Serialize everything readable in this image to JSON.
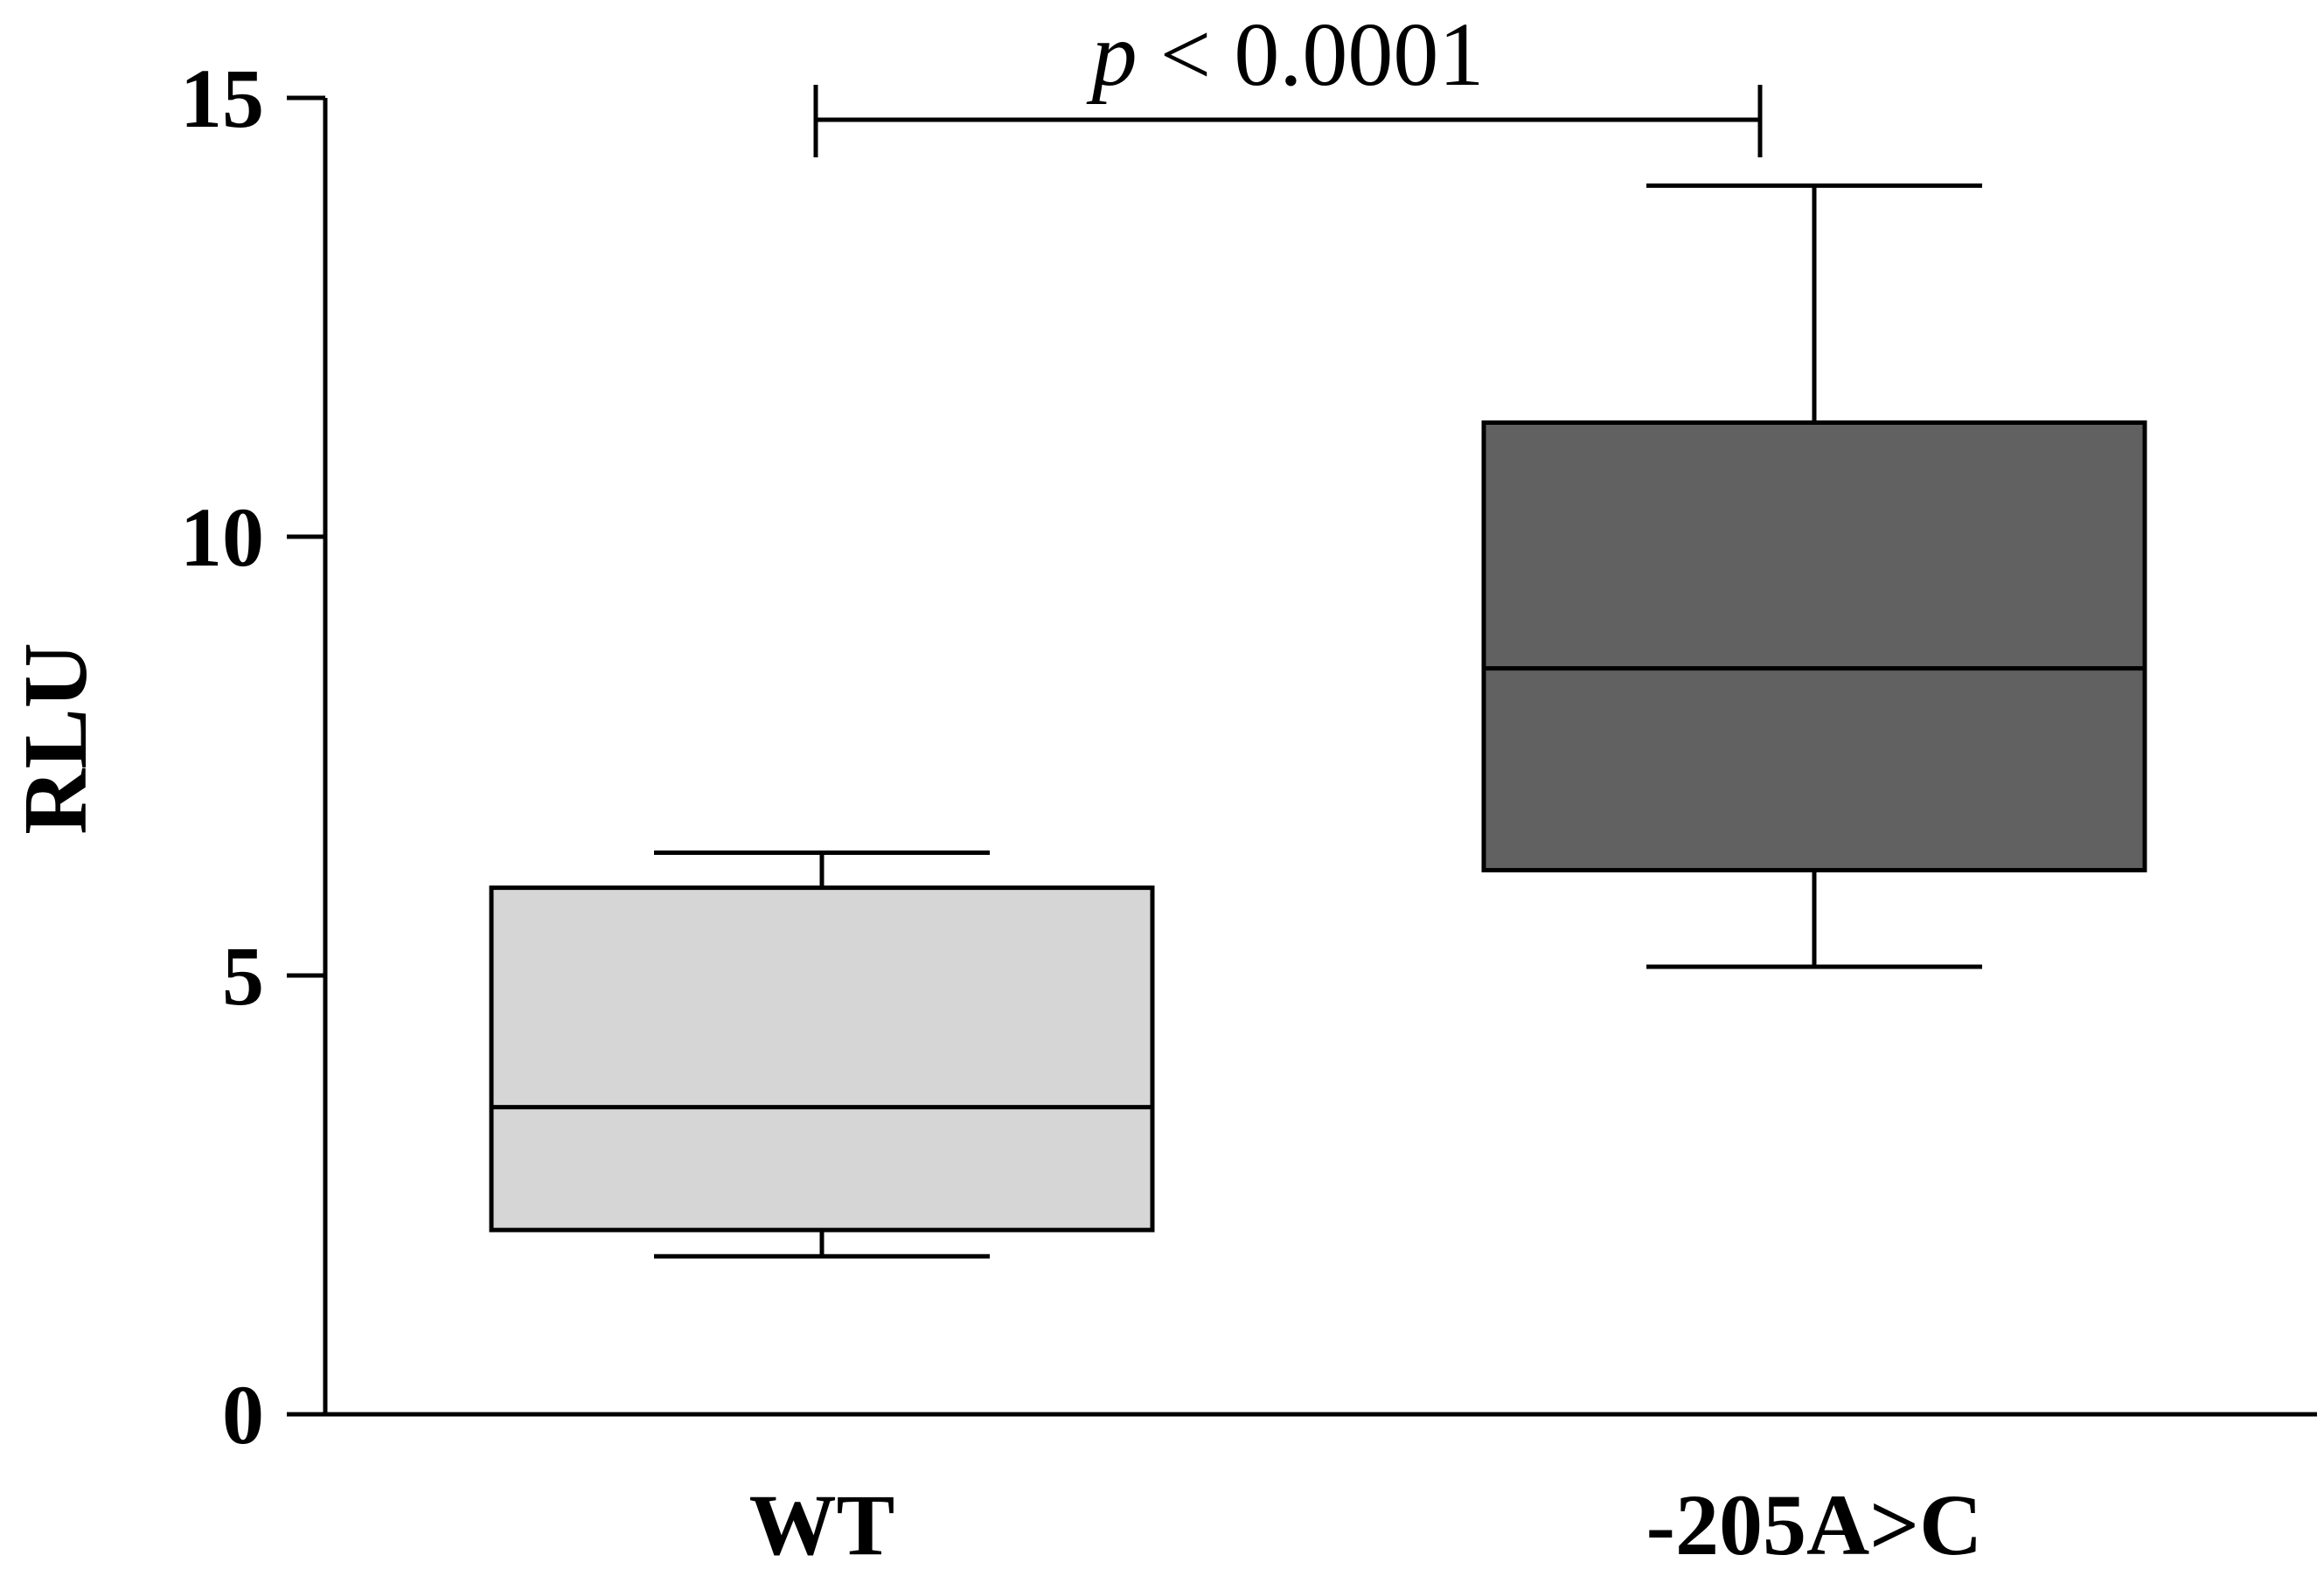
{
  "chart_data": {
    "type": "box",
    "ylabel": "RLU",
    "xlabel": "",
    "title": "",
    "ylim": [
      0,
      15
    ],
    "yticks": [
      0,
      5,
      10,
      15
    ],
    "grid": false,
    "categories": [
      "WT",
      "-205A>C"
    ],
    "boxes": [
      {
        "category": "WT",
        "min": 1.8,
        "q1": 2.1,
        "median": 3.5,
        "q3": 6.0,
        "max": 6.4,
        "fill": "#d6d6d6"
      },
      {
        "category": "-205A>C",
        "min": 5.1,
        "q1": 6.2,
        "median": 8.5,
        "q3": 11.3,
        "max": 14.0,
        "fill": "#616161"
      }
    ],
    "annotations": [
      {
        "type": "significance-bracket",
        "from": "WT",
        "to": "-205A>C",
        "y": 14.8,
        "p_symbol": "p",
        "p_text": " < 0.0001"
      }
    ]
  }
}
